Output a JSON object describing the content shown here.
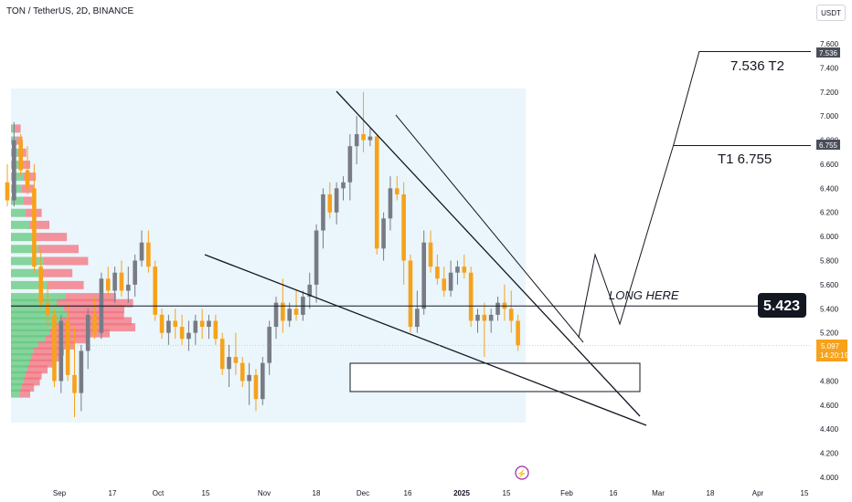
{
  "header": {
    "symbol": "TON / TetherUS, 2D, BINANCE",
    "currency": "USDT"
  },
  "annotations": {
    "t2": "7.536 T2",
    "t1": "T1 6.755",
    "long": "LONG HERE",
    "entry": "5.423"
  },
  "price_tags": {
    "t2": "7.536",
    "t1": "6.755",
    "last": "5.097",
    "countdown": "14:20:19"
  },
  "colors": {
    "up": "#787b86",
    "down": "#f7a21b",
    "tag_bg": "#4a4e59",
    "last_bg": "#f7a21b",
    "vp_up": "#64c87e",
    "vp_down": "#f4707e",
    "vp_bg": "#eaf6fb"
  },
  "chart_data": {
    "type": "candlestick",
    "y_axis": {
      "min": 4.0,
      "max": 7.6,
      "ticks": [
        "7.600",
        "7.400",
        "7.200",
        "7.000",
        "6.800",
        "6.600",
        "6.400",
        "6.200",
        "6.000",
        "5.800",
        "5.600",
        "5.400",
        "5.200",
        "5.000",
        "4.800",
        "4.600",
        "4.400",
        "4.200",
        "4.000"
      ]
    },
    "x_ticks": [
      "Sep",
      "17",
      "Oct",
      "15",
      "Nov",
      "18",
      "Dec",
      "16",
      "2025",
      "15",
      "Feb",
      "16",
      "Mar",
      "18",
      "Apr",
      "15"
    ],
    "candles": [
      [
        6.45,
        6.6,
        6.25,
        6.3
      ],
      [
        6.3,
        6.95,
        6.25,
        6.8
      ],
      [
        6.8,
        6.85,
        6.5,
        6.55
      ],
      [
        6.55,
        6.75,
        6.35,
        6.4
      ],
      [
        6.4,
        6.6,
        5.7,
        5.75
      ],
      [
        5.75,
        5.9,
        5.4,
        5.45
      ],
      [
        5.45,
        5.6,
        5.25,
        5.35
      ],
      [
        5.35,
        5.4,
        4.75,
        4.8
      ],
      [
        4.8,
        5.35,
        4.7,
        5.3
      ],
      [
        5.3,
        5.45,
        4.8,
        4.85
      ],
      [
        4.85,
        5.25,
        4.5,
        4.7
      ],
      [
        4.7,
        5.1,
        4.55,
        5.05
      ],
      [
        5.05,
        5.4,
        4.9,
        5.35
      ],
      [
        5.35,
        5.5,
        5.15,
        5.2
      ],
      [
        5.2,
        5.7,
        5.15,
        5.65
      ],
      [
        5.65,
        5.75,
        5.5,
        5.55
      ],
      [
        5.55,
        5.75,
        5.45,
        5.7
      ],
      [
        5.7,
        5.8,
        5.5,
        5.55
      ],
      [
        5.55,
        5.75,
        5.45,
        5.6
      ],
      [
        5.6,
        5.85,
        5.5,
        5.8
      ],
      [
        5.8,
        6.05,
        5.75,
        5.95
      ],
      [
        5.95,
        6.05,
        5.7,
        5.75
      ],
      [
        5.75,
        5.8,
        5.3,
        5.35
      ],
      [
        5.35,
        5.4,
        5.15,
        5.2
      ],
      [
        5.2,
        5.35,
        5.1,
        5.3
      ],
      [
        5.3,
        5.4,
        5.15,
        5.25
      ],
      [
        5.25,
        5.35,
        5.1,
        5.15
      ],
      [
        5.15,
        5.3,
        5.05,
        5.2
      ],
      [
        5.2,
        5.35,
        5.1,
        5.3
      ],
      [
        5.3,
        5.4,
        5.15,
        5.25
      ],
      [
        5.25,
        5.35,
        5.15,
        5.3
      ],
      [
        5.3,
        5.35,
        5.1,
        5.15
      ],
      [
        5.15,
        5.2,
        4.85,
        4.9
      ],
      [
        4.9,
        5.1,
        4.75,
        5.0
      ],
      [
        5.0,
        5.2,
        4.85,
        4.95
      ],
      [
        4.95,
        5.0,
        4.75,
        4.8
      ],
      [
        4.8,
        4.95,
        4.6,
        4.85
      ],
      [
        4.85,
        4.9,
        4.55,
        4.65
      ],
      [
        4.65,
        5.0,
        4.6,
        4.95
      ],
      [
        4.95,
        5.3,
        4.85,
        5.25
      ],
      [
        5.25,
        5.5,
        5.15,
        5.45
      ],
      [
        5.45,
        5.65,
        5.2,
        5.3
      ],
      [
        5.3,
        5.45,
        5.25,
        5.4
      ],
      [
        5.4,
        5.55,
        5.3,
        5.35
      ],
      [
        5.35,
        5.55,
        5.3,
        5.5
      ],
      [
        5.5,
        5.7,
        5.4,
        5.6
      ],
      [
        5.6,
        6.1,
        5.45,
        6.05
      ],
      [
        6.05,
        6.4,
        5.9,
        6.35
      ],
      [
        6.35,
        6.45,
        6.15,
        6.2
      ],
      [
        6.2,
        6.45,
        6.1,
        6.4
      ],
      [
        6.4,
        6.5,
        6.3,
        6.45
      ],
      [
        6.45,
        6.85,
        6.3,
        6.75
      ],
      [
        6.75,
        7.0,
        6.6,
        6.85
      ],
      [
        6.85,
        7.2,
        6.7,
        6.8
      ],
      [
        6.8,
        6.9,
        6.75,
        6.83
      ],
      [
        6.83,
        6.85,
        5.85,
        5.9
      ],
      [
        5.9,
        6.2,
        5.8,
        6.15
      ],
      [
        6.15,
        6.5,
        6.05,
        6.4
      ],
      [
        6.4,
        6.5,
        6.3,
        6.35
      ],
      [
        6.35,
        6.45,
        5.6,
        5.8
      ],
      [
        5.8,
        5.85,
        5.2,
        5.25
      ],
      [
        5.25,
        5.55,
        5.2,
        5.4
      ],
      [
        5.4,
        6.05,
        5.35,
        5.95
      ],
      [
        5.95,
        6.05,
        5.7,
        5.75
      ],
      [
        5.75,
        5.85,
        5.6,
        5.65
      ],
      [
        5.65,
        5.75,
        5.5,
        5.55
      ],
      [
        5.55,
        5.8,
        5.5,
        5.7
      ],
      [
        5.7,
        5.8,
        5.6,
        5.75
      ],
      [
        5.75,
        5.85,
        5.65,
        5.7
      ],
      [
        5.7,
        5.75,
        5.25,
        5.3
      ],
      [
        5.3,
        5.4,
        5.2,
        5.35
      ],
      [
        5.35,
        5.45,
        5.0,
        5.3
      ],
      [
        5.3,
        5.4,
        5.2,
        5.35
      ],
      [
        5.35,
        5.5,
        5.3,
        5.45
      ],
      [
        5.45,
        5.6,
        5.3,
        5.4
      ],
      [
        5.4,
        5.55,
        5.2,
        5.3
      ],
      [
        5.3,
        5.35,
        5.05,
        5.097
      ]
    ],
    "horizontal_levels": [
      5.423
    ],
    "targets": [
      6.755,
      7.536
    ],
    "last_price": 5.097
  }
}
